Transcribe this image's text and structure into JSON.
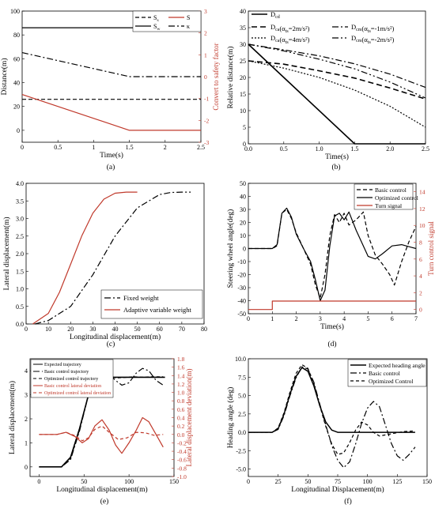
{
  "chart_data": [
    {
      "type": "line",
      "caption": "(a)",
      "xlabel": "Time(s)",
      "ylabel": "Distance(m)",
      "y2label": "Convert to safety factor",
      "xlim": [
        0,
        2.5
      ],
      "ylim": [
        -10,
        100
      ],
      "y2lim": [
        -3,
        3
      ],
      "xticks": [
        "0",
        "0.5",
        "1",
        "1.5",
        "2",
        "2.5"
      ],
      "yticks": [
        "0",
        "20",
        "40",
        "60",
        "80",
        "100"
      ],
      "y2ticks": [
        "-3",
        "-2",
        "-1",
        "0",
        "1",
        "2",
        "3"
      ],
      "legend": [
        "S",
        "S",
        "S",
        "κ"
      ],
      "legend_subs": [
        "s",
        "",
        "w",
        ""
      ],
      "series": [
        {
          "axis": "left",
          "color": "#000000",
          "dash": "5,3",
          "x": [
            0,
            2.5
          ],
          "y": [
            26,
            26
          ]
        },
        {
          "axis": "left",
          "color": "#000000",
          "dash": "",
          "x": [
            0,
            2.5
          ],
          "y": [
            86,
            86
          ]
        },
        {
          "axis": "right",
          "color": "#000000",
          "dash": "8,3,2,3",
          "x": [
            0,
            1.5,
            2.5
          ],
          "y": [
            1.1,
            0,
            0
          ]
        },
        {
          "axis": "left",
          "color": "#c0392b",
          "dash": "",
          "x": [
            0,
            1.5,
            2.5
          ],
          "y": [
            30,
            0,
            0
          ]
        }
      ]
    },
    {
      "type": "line",
      "caption": "(b)",
      "xlabel": "Time(s)",
      "ylabel": "Relative distance(m)",
      "xlim": [
        0,
        2.5
      ],
      "ylim": [
        0,
        40
      ],
      "xticks": [
        "0.0",
        "0.5",
        "1.0",
        "1.5",
        "2.0",
        "2.5"
      ],
      "yticks": [
        "0",
        "5",
        "10",
        "15",
        "20",
        "25",
        "30",
        "35",
        "40"
      ],
      "legend": [
        "D",
        "D",
        "D",
        "D",
        "D"
      ],
      "legend_subs": [
        "cd",
        "ca",
        "cm",
        "ca",
        "cm"
      ],
      "legend_suffix": [
        "",
        "(α  =2m/s²)",
        "(α  =-1m/s²)",
        "(α  =4m/s²)",
        "(α  =-2m/s²)"
      ],
      "legend_alpha_subs": [
        "",
        "ts",
        "ts",
        "ts",
        "ts"
      ],
      "series": [
        {
          "color": "#000000",
          "dash": "",
          "width": 1.6,
          "x": [
            0,
            1.5,
            2.5
          ],
          "y": [
            30,
            0,
            0
          ]
        },
        {
          "color": "#000000",
          "dash": "7,4",
          "width": 1.6,
          "x": [
            0,
            0.5,
            1,
            1.5,
            2,
            2.5
          ],
          "y": [
            25,
            24,
            22,
            19.8,
            16.8,
            13.5
          ]
        },
        {
          "color": "#000000",
          "dash": "8,3,2,3",
          "width": 1.2,
          "x": [
            0,
            0.5,
            1,
            1.5,
            2,
            2.5
          ],
          "y": [
            30,
            28.3,
            26.5,
            24.1,
            21.0,
            17.0
          ]
        },
        {
          "color": "#000000",
          "dash": "2,2",
          "width": 1.2,
          "x": [
            0,
            0.5,
            1,
            1.5,
            2,
            2.5
          ],
          "y": [
            25,
            22.8,
            20.0,
            16.2,
            11.3,
            5.0
          ]
        },
        {
          "color": "#000000",
          "dash": "8,3,2,3,2,3",
          "width": 1.2,
          "x": [
            0,
            0.5,
            1,
            1.5,
            2,
            2.5
          ],
          "y": [
            30,
            28.0,
            25.5,
            22.6,
            18.6,
            13.8
          ]
        }
      ]
    },
    {
      "type": "line",
      "caption": "(c)",
      "xlabel": "Longitudinal displacement(m)",
      "ylabel": "Lateral displacement(m)",
      "xlim": [
        0,
        80
      ],
      "ylim": [
        0,
        4.0
      ],
      "xticks": [
        "0",
        "10",
        "20",
        "30",
        "40",
        "50",
        "60",
        "70",
        "80"
      ],
      "yticks": [
        "0.0",
        "0.5",
        "1.0",
        "1.5",
        "2.0",
        "2.5",
        "3.0",
        "3.5",
        "4.0"
      ],
      "legend": [
        "Fixed weight",
        "Adaptive variable weight"
      ],
      "series": [
        {
          "name": "Fixed weight",
          "color": "#000000",
          "dash": "8,3,2,3",
          "x": [
            4,
            10,
            20,
            30,
            40,
            50,
            60,
            65,
            70,
            74
          ],
          "y": [
            0,
            0.1,
            0.5,
            1.4,
            2.5,
            3.3,
            3.68,
            3.74,
            3.75,
            3.75
          ]
        },
        {
          "name": "Adaptive variable weight",
          "color": "#c0392b",
          "dash": "",
          "x": [
            3,
            10,
            15,
            20,
            25,
            30,
            35,
            40,
            45,
            50
          ],
          "y": [
            0,
            0.3,
            0.9,
            1.7,
            2.5,
            3.15,
            3.55,
            3.72,
            3.75,
            3.75
          ]
        }
      ]
    },
    {
      "type": "line",
      "caption": "(d)",
      "xlabel": "Time(s)",
      "ylabel": "Steering wheel angle(deg)",
      "y2label": "Turn control signal",
      "xlim": [
        0,
        7
      ],
      "ylim": [
        -50,
        50
      ],
      "y2lim": [
        -0.5,
        15
      ],
      "xticks": [
        "0",
        "1",
        "2",
        "3",
        "4",
        "5",
        "6",
        "7"
      ],
      "yticks": [
        "-50",
        "-40",
        "-30",
        "-20",
        "-10",
        "0",
        "10",
        "20",
        "30",
        "40",
        "50"
      ],
      "y2ticks": [
        "0",
        "2",
        "4",
        "6",
        "8",
        "10",
        "12",
        "14"
      ],
      "legend": [
        "Basic control",
        "Optimized control",
        "Turn signal"
      ],
      "series": [
        {
          "name": "Basic control",
          "axis": "left",
          "color": "#000000",
          "dash": "5,3",
          "x": [
            0,
            1.0,
            1.2,
            1.4,
            1.6,
            1.8,
            2.0,
            2.3,
            2.6,
            2.8,
            3.0,
            3.2,
            3.4,
            3.6,
            3.8,
            4.0,
            4.2,
            4.5,
            4.8,
            5.0,
            5.3,
            5.6,
            5.9,
            6.1,
            6.4,
            6.7,
            7.0
          ],
          "y": [
            0,
            0,
            2,
            27,
            30,
            23,
            12,
            0,
            -12,
            -28,
            -38,
            -20,
            10,
            26,
            20,
            27,
            18,
            22,
            28,
            10,
            -5,
            -12,
            -20,
            -28,
            -10,
            5,
            17
          ]
        },
        {
          "name": "Optimized control",
          "axis": "left",
          "color": "#000000",
          "dash": "",
          "x": [
            0,
            1.0,
            1.2,
            1.4,
            1.6,
            1.8,
            2.0,
            2.3,
            2.6,
            2.8,
            3.0,
            3.2,
            3.4,
            3.6,
            3.8,
            4.0,
            4.2,
            4.5,
            4.8,
            5.0,
            5.3,
            5.6,
            6.0,
            6.4,
            6.8,
            7.0
          ],
          "y": [
            0,
            0,
            3,
            27,
            31,
            24,
            11,
            0,
            -10,
            -24,
            -40,
            -32,
            2,
            25,
            27,
            22,
            28,
            14,
            2,
            -6,
            -8,
            -4,
            2,
            3,
            1,
            0
          ]
        },
        {
          "name": "Turn signal",
          "axis": "right",
          "color": "#c0392b",
          "dash": "",
          "x": [
            0,
            1.0,
            1.0,
            7.0
          ],
          "y": [
            0,
            0,
            1,
            1
          ]
        }
      ]
    },
    {
      "type": "line",
      "caption": "(e)",
      "xlabel": "Longitudinal displacement(m)",
      "ylabel": "Lateral displacement(m)",
      "y2label": "Lateral displacement deviation(m)",
      "xlim": [
        -10,
        150
      ],
      "ylim": [
        -0.4,
        4.5
      ],
      "y2lim": [
        -1.0,
        1.8
      ],
      "xticks": [
        "0",
        "50",
        "100",
        "150"
      ],
      "yticks": [
        "0",
        "1",
        "2",
        "3",
        "4"
      ],
      "y2ticks": [
        "-1.0",
        "-0.8",
        "-0.6",
        "-0.4",
        "-0.2",
        "0.0",
        "0.2",
        "0.4",
        "0.6",
        "0.8",
        "1.0",
        "1.2",
        "1.4",
        "1.6",
        "1.8"
      ],
      "legend": [
        "Expected trajectory",
        "Basic control trajectory",
        "Optimized control trajectory",
        "Basic control lateral deviation",
        "Optimized control lateral deviation"
      ],
      "series": [
        {
          "name": "Expected trajectory",
          "axis": "left",
          "color": "#000000",
          "dash": "",
          "width": 1.6,
          "x": [
            0,
            25,
            35,
            45,
            55,
            62,
            70,
            140
          ],
          "y": [
            0,
            0,
            0.4,
            1.6,
            3.0,
            3.6,
            3.73,
            3.73
          ]
        },
        {
          "name": "Basic control trajectory",
          "axis": "left",
          "color": "#000000",
          "dash": "8,3,2,3",
          "x": [
            0,
            25,
            35,
            45,
            55,
            63,
            70,
            78,
            85,
            92,
            100,
            108,
            115,
            122,
            130,
            138
          ],
          "y": [
            0,
            0,
            0.3,
            1.5,
            3.0,
            3.8,
            4.0,
            3.85,
            3.6,
            3.4,
            3.5,
            3.9,
            4.1,
            4.0,
            3.6,
            3.4
          ]
        },
        {
          "name": "Optimized control trajectory",
          "axis": "left",
          "color": "#000000",
          "dash": "4,3",
          "x": [
            0,
            25,
            35,
            45,
            55,
            63,
            70,
            78,
            85,
            95,
            105,
            115,
            125,
            138
          ],
          "y": [
            0,
            0,
            0.35,
            1.55,
            3.0,
            3.7,
            3.9,
            3.8,
            3.7,
            3.72,
            3.75,
            3.73,
            3.75,
            3.75
          ]
        },
        {
          "name": "Basic control lateral deviation",
          "axis": "right",
          "color": "#c0392b",
          "dash": "",
          "x": [
            0,
            20,
            30,
            40,
            48,
            55,
            62,
            70,
            78,
            85,
            92,
            100,
            108,
            115,
            122,
            130,
            138
          ],
          "y": [
            0,
            0,
            0.05,
            -0.05,
            -0.2,
            -0.1,
            0.2,
            0.35,
            0.1,
            -0.25,
            -0.45,
            -0.2,
            0.1,
            0.4,
            0.3,
            0.0,
            -0.3
          ]
        },
        {
          "name": "Optimized control lateral deviation",
          "axis": "right",
          "color": "#c0392b",
          "dash": "4,3",
          "x": [
            0,
            20,
            30,
            40,
            48,
            55,
            62,
            70,
            78,
            88,
            98,
            108,
            118,
            128,
            138
          ],
          "y": [
            0,
            0,
            0.05,
            -0.03,
            -0.15,
            -0.08,
            0.12,
            0.2,
            0.05,
            -0.12,
            -0.08,
            0.05,
            0.04,
            -0.02,
            0.0
          ]
        }
      ]
    },
    {
      "type": "line",
      "caption": "(f)",
      "xlabel": "Longitudinal Displacement(m)",
      "ylabel": "Heading angle (deg)",
      "xlim": [
        0,
        150
      ],
      "ylim": [
        -6,
        10
      ],
      "xticks": [
        "0",
        "25",
        "50",
        "75",
        "100",
        "125",
        "150"
      ],
      "yticks": [
        "-5.0",
        "-2.5",
        "0.0",
        "2.5",
        "5.0",
        "7.5",
        "10.0"
      ],
      "legend": [
        "Expected heading angle",
        "Basic control",
        "Optimized Control"
      ],
      "series": [
        {
          "name": "Expected heading angle",
          "color": "#000000",
          "dash": "",
          "width": 1.5,
          "x": [
            0,
            20,
            25,
            30,
            35,
            40,
            45,
            50,
            55,
            60,
            65,
            70,
            75,
            140
          ],
          "y": [
            0,
            0,
            0.5,
            2.5,
            5.2,
            7.6,
            8.8,
            8.3,
            6.3,
            3.6,
            1.4,
            0.3,
            0,
            0
          ]
        },
        {
          "name": "Basic control",
          "color": "#000000",
          "dash": "8,3,2,3",
          "x": [
            0,
            20,
            25,
            30,
            35,
            40,
            45,
            50,
            55,
            60,
            65,
            70,
            75,
            80,
            85,
            90,
            95,
            100,
            105,
            110,
            115,
            120,
            125,
            130,
            135,
            140
          ],
          "y": [
            0,
            0,
            0.4,
            2.3,
            5.0,
            7.4,
            8.9,
            8.6,
            6.8,
            3.8,
            1.0,
            -1.8,
            -3.8,
            -4.8,
            -4.0,
            -1.6,
            1.2,
            3.3,
            4.2,
            3.5,
            1.0,
            -1.5,
            -3.2,
            -3.8,
            -3.0,
            -2.0
          ]
        },
        {
          "name": "Optimized Control",
          "color": "#000000",
          "dash": "4,3",
          "x": [
            0,
            20,
            25,
            30,
            35,
            40,
            45,
            50,
            55,
            60,
            65,
            70,
            75,
            80,
            85,
            90,
            95,
            100,
            105,
            110,
            120,
            130,
            140
          ],
          "y": [
            0,
            0,
            0.6,
            2.7,
            5.5,
            8.0,
            9.2,
            8.7,
            6.6,
            3.6,
            0.8,
            -1.6,
            -3.0,
            -2.8,
            -1.4,
            0.3,
            1.4,
            1.0,
            0.0,
            -0.5,
            -0.2,
            0.1,
            0.2
          ]
        }
      ]
    }
  ]
}
